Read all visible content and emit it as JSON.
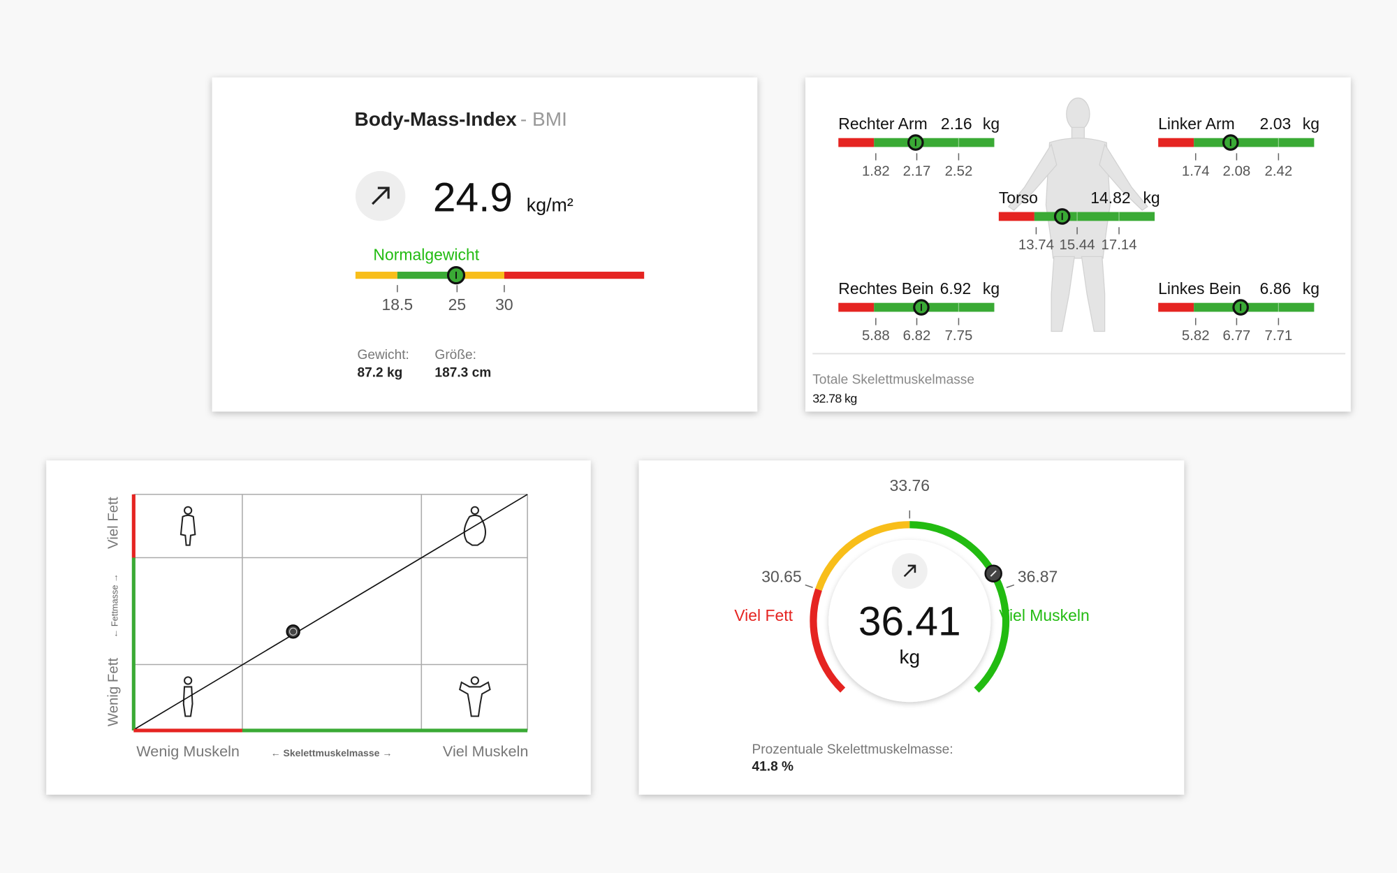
{
  "bmi_card": {
    "title": "Body-Mass-Index",
    "subtitle": "- BMI",
    "value": 24.9,
    "unit": "kg/m²",
    "category": "Normalgewicht",
    "ticks": [
      18.5,
      25,
      30
    ],
    "weight_label": "Gewicht:",
    "weight": "87.2 kg",
    "height_label": "Größe:",
    "height": "187.3 cm"
  },
  "segments_card": {
    "segments": [
      {
        "name": "Rechter Arm",
        "value": 2.16,
        "unit": "kg",
        "ticks": [
          1.82,
          2.17,
          2.52
        ]
      },
      {
        "name": "Linker Arm",
        "value": 2.03,
        "unit": "kg",
        "ticks": [
          1.74,
          2.08,
          2.42
        ]
      },
      {
        "name": "Torso",
        "value": 14.82,
        "unit": "kg",
        "ticks": [
          13.74,
          15.44,
          17.14
        ]
      },
      {
        "name": "Rechtes Bein",
        "value": 6.92,
        "unit": "kg",
        "ticks": [
          5.88,
          6.82,
          7.75
        ]
      },
      {
        "name": "Linkes Bein",
        "value": 6.86,
        "unit": "kg",
        "ticks": [
          5.82,
          6.77,
          7.71
        ]
      }
    ],
    "total_label": "Totale Skelettmuskelmasse",
    "total": "32.78 kg"
  },
  "matrix_card": {
    "y_top": "Viel Fett",
    "y_axis": "← Fettmasse →",
    "y_bottom": "Wenig Fett",
    "x_left": "Wenig Muskeln",
    "x_axis": "← Skelettmuskelmasse →",
    "x_right": "Viel Muskeln"
  },
  "gauge_card": {
    "value": 36.41,
    "unit": "kg",
    "ticks": [
      30.65,
      33.76,
      36.87
    ],
    "left_label": "Viel Fett",
    "right_label": "Viel Muskeln",
    "footer_label": "Prozentuale Skelettmuskelmasse:",
    "footer_value": "41.8 %"
  }
}
